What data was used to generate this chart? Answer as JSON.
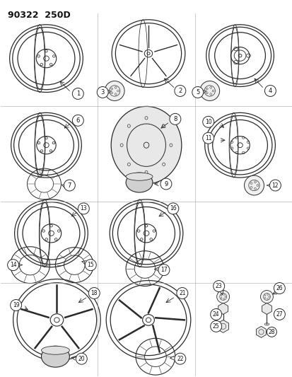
{
  "title": "90322  250D",
  "bg_color": "#ffffff",
  "line_color": "#2a2a2a",
  "grid_color": "#aaaaaa",
  "text_color": "#111111",
  "fig_width": 4.14,
  "fig_height": 5.33,
  "dpi": 100
}
